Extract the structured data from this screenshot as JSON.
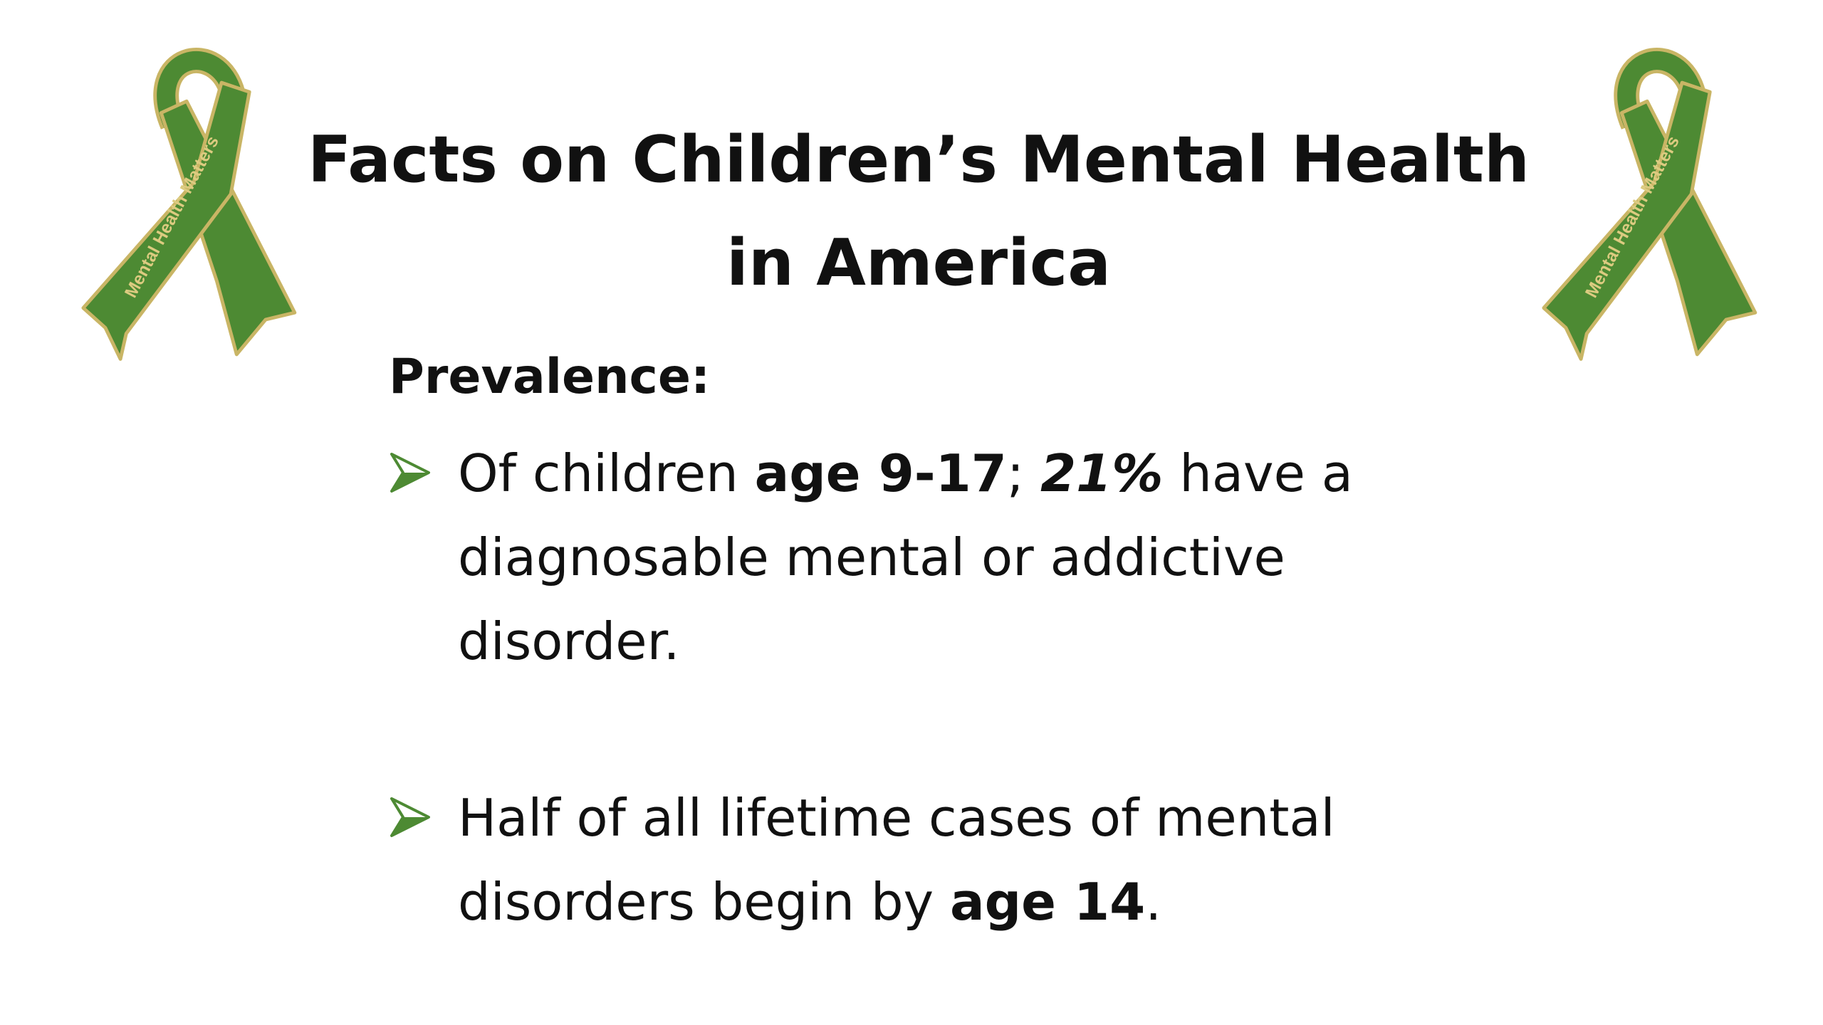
{
  "title": {
    "lines": [
      "Facts on Children’s Mental Health",
      "in America"
    ]
  },
  "heading": "Prevalence:",
  "ribbons": [
    "Mental Health Matters",
    "Mental Health Matters"
  ],
  "bullets": [
    {
      "lines": [
        [
          {
            "text": "Of children "
          },
          {
            "text": "age 9-17",
            "bold": true
          },
          {
            "text": "; "
          },
          {
            "text": "21%",
            "bold": true,
            "italic": true
          },
          {
            "text": " have a"
          }
        ],
        [
          {
            "text": "diagnosable mental or addictive"
          }
        ],
        [
          {
            "text": "disorder."
          }
        ]
      ]
    },
    {
      "lines": [
        [
          {
            "text": "Half of all lifetime cases of mental"
          }
        ],
        [
          {
            "text": "disorders begin by "
          },
          {
            "text": "age 14",
            "bold": true
          },
          {
            "text": "."
          }
        ]
      ]
    }
  ]
}
